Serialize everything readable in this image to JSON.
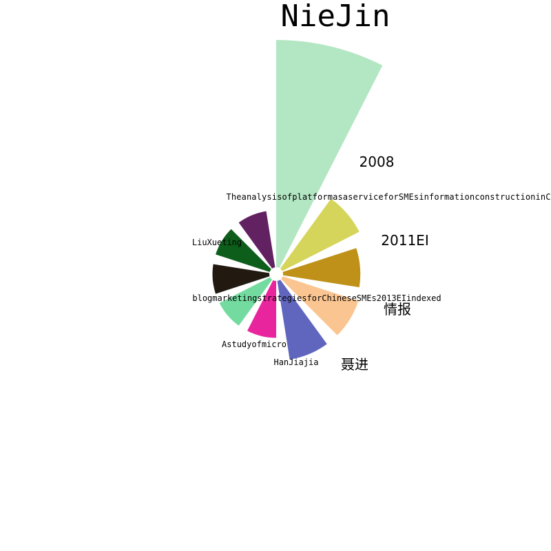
{
  "chart_data": {
    "type": "polar-bar",
    "title": "NieJin",
    "categories": [
      "",
      "2008",
      "2011EI",
      "情报",
      "聂进",
      "HanJiajia",
      "Astudyofmicro",
      "blogmarketingstrategiesforChineseSMEs2013EIindexed",
      "LiuXueting",
      "TheanalysisofplatformasaserviceforSMEsinformationconstructioninC"
    ],
    "values": [
      10.0,
      3.8,
      3.4,
      3.5,
      3.5,
      2.5,
      2.5,
      2.5,
      2.5,
      2.5
    ],
    "colors": [
      "#b3e6c3",
      "#d5d55c",
      "#bf9118",
      "#fac591",
      "#6066be",
      "#e8259c",
      "#73db9f",
      "#221a11",
      "#0e5e1b",
      "#622160"
    ],
    "r_range": [
      0,
      10
    ]
  }
}
